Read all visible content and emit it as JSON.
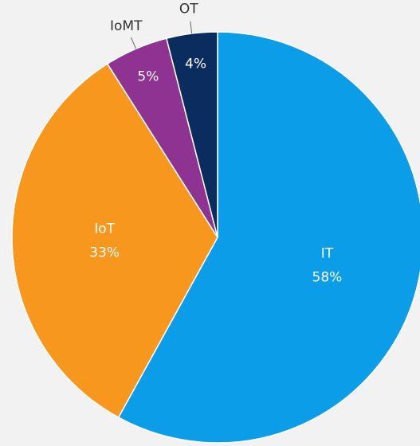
{
  "chart_data": {
    "type": "pie",
    "categories": [
      "IT",
      "IoT",
      "IoMT",
      "OT"
    ],
    "values": [
      58,
      33,
      5,
      4
    ],
    "value_labels": [
      "58%",
      "33%",
      "5%",
      "4%"
    ],
    "colors": [
      "#0b9de8",
      "#f7971e",
      "#8e3391",
      "#0b2c5e"
    ]
  }
}
